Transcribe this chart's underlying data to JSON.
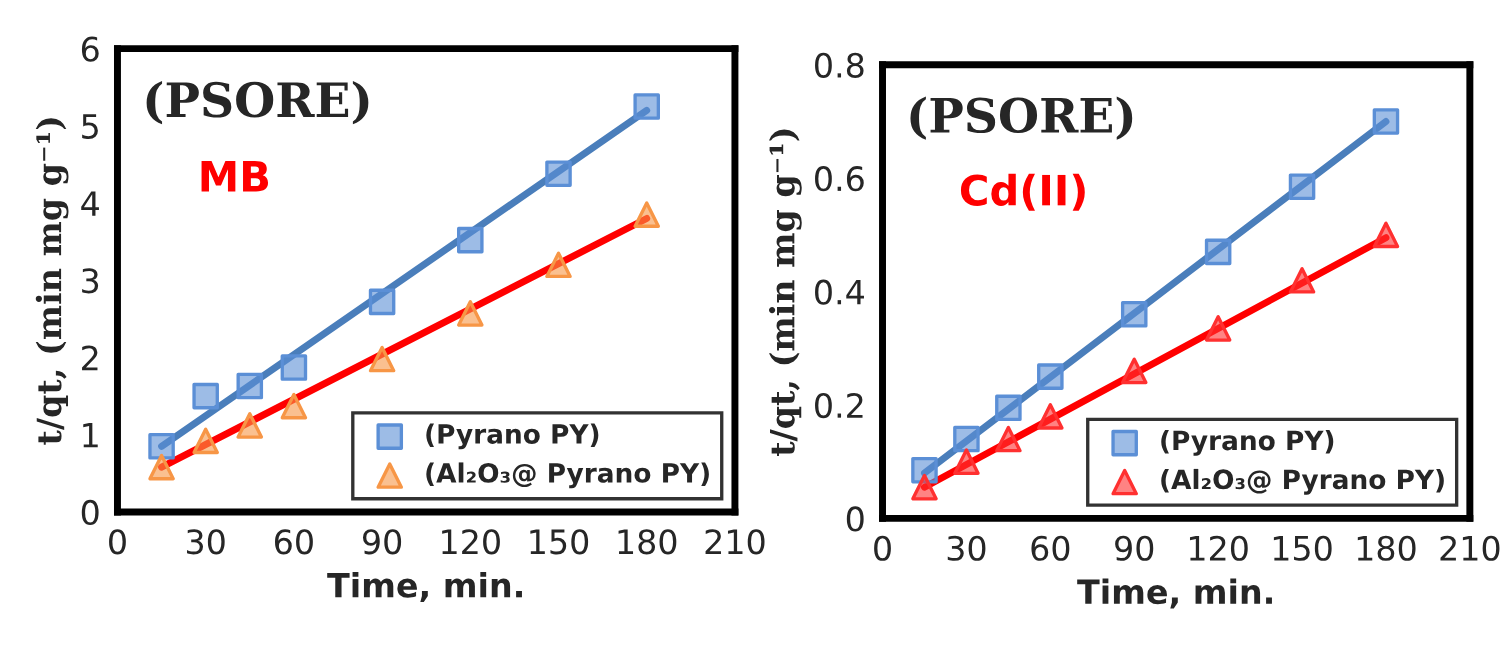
{
  "chart_data": [
    {
      "type": "scatter",
      "xlabel": "Time, min.",
      "ylabel": "t/qt, (min mg g⁻¹)",
      "annotations": [
        "(PSORE)",
        "MB"
      ],
      "xlim": [
        0,
        210
      ],
      "xticks": [
        0,
        30,
        60,
        90,
        120,
        150,
        180,
        210
      ],
      "ylim": [
        0,
        6
      ],
      "yticks": [
        0,
        1,
        2,
        3,
        4,
        5,
        6
      ],
      "grid": false,
      "legend": "bottom right",
      "series": [
        {
          "name": "(Pyrano PY)",
          "color": "#5b8fd6",
          "marker": "square",
          "x": [
            15,
            30,
            45,
            60,
            90,
            120,
            150,
            180
          ],
          "values": [
            0.85,
            1.5,
            1.63,
            1.87,
            2.72,
            3.52,
            4.38,
            5.25
          ]
        },
        {
          "name": "(Al₂O₃@ Pyrano PY)",
          "color": "#f79646",
          "marker": "triangle",
          "x": [
            15,
            30,
            45,
            60,
            90,
            120,
            150,
            180
          ],
          "values": [
            0.58,
            0.92,
            1.12,
            1.37,
            1.98,
            2.57,
            3.2,
            3.85
          ]
        },
        {
          "type": "line",
          "color": "#4a7ebb",
          "x": [
            15,
            180
          ],
          "values": [
            0.85,
            5.2
          ]
        },
        {
          "type": "line",
          "color": "#ff0000",
          "x": [
            15,
            180
          ],
          "values": [
            0.58,
            3.8
          ]
        }
      ]
    },
    {
      "type": "scatter",
      "xlabel": "Time, min.",
      "ylabel": "t/qt, (min mg g⁻¹)",
      "annotations": [
        "(PSORE)",
        "Cd(II)"
      ],
      "xlim": [
        0,
        210
      ],
      "xticks": [
        0,
        30,
        60,
        90,
        120,
        150,
        180,
        210
      ],
      "ylim": [
        0,
        0.8
      ],
      "yticks": [
        0,
        0.2,
        0.4,
        0.6,
        0.8
      ],
      "grid": false,
      "legend": "bottom right",
      "series": [
        {
          "name": "(Pyrano PY)",
          "color": "#5b8fd6",
          "marker": "square",
          "x": [
            15,
            30,
            45,
            60,
            90,
            120,
            150,
            180
          ],
          "values": [
            0.085,
            0.14,
            0.195,
            0.25,
            0.36,
            0.47,
            0.585,
            0.7
          ]
        },
        {
          "name": "(Al₂O₃@ Pyrano PY)",
          "color": "#ff3030",
          "marker": "triangle",
          "x": [
            15,
            30,
            45,
            60,
            90,
            120,
            150,
            180
          ],
          "values": [
            0.055,
            0.1,
            0.14,
            0.18,
            0.26,
            0.335,
            0.42,
            0.5
          ]
        },
        {
          "type": "line",
          "color": "#4a7ebb",
          "x": [
            15,
            180
          ],
          "values": [
            0.08,
            0.7
          ]
        },
        {
          "type": "line",
          "color": "#ff0000",
          "x": [
            15,
            180
          ],
          "values": [
            0.055,
            0.495
          ]
        }
      ]
    }
  ]
}
